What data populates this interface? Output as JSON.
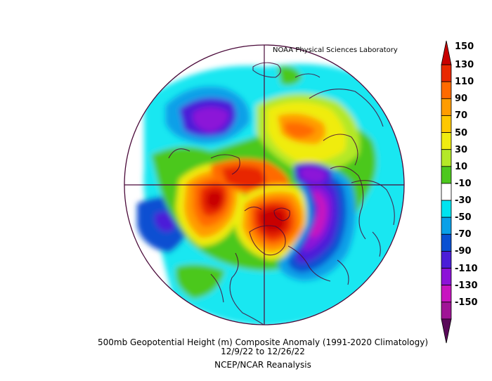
{
  "credit": "NOAA Physical Sciences Laboratory",
  "caption": {
    "title": "500mb Geopotential Height (m) Composite Anomaly (1991-2020 Climatology)",
    "dates": "12/9/22  to 12/26/22",
    "source": "NCEP/NCAR Reanalysis"
  },
  "colorbar": {
    "ticks": [
      "150",
      "130",
      "110",
      "90",
      "70",
      "50",
      "30",
      "10",
      "-10",
      "-30",
      "-50",
      "-70",
      "-90",
      "-110",
      "-130",
      "-150"
    ],
    "colors": [
      "#c80000",
      "#e82800",
      "#ff6a00",
      "#ff9c00",
      "#ffc800",
      "#f0ec10",
      "#b4e828",
      "#4cc81e",
      "#ffffff",
      "#00e4f0",
      "#0aa0e8",
      "#0a50d2",
      "#4b1ed8",
      "#8c12d8",
      "#c814c0",
      "#a01496",
      "#5a0a5a"
    ]
  },
  "map": {
    "projection": "north polar stereographic",
    "variable": "500mb geopotential height anomaly",
    "units": "m",
    "features": [
      {
        "name": "ridge-north-pacific",
        "sign": "positive",
        "peak": 150
      },
      {
        "name": "ridge-greenland-canada",
        "sign": "positive",
        "peak": 150
      },
      {
        "name": "ridge-arctic-north-atlantic",
        "sign": "positive",
        "peak": 110
      },
      {
        "name": "trough-eastern-siberia",
        "sign": "negative",
        "peak": -150
      },
      {
        "name": "trough-western-north-america",
        "sign": "negative",
        "peak": -150
      },
      {
        "name": "low-europe",
        "sign": "negative",
        "peak": -110
      },
      {
        "name": "low-subtropical-pacific",
        "sign": "negative",
        "peak": -90
      }
    ]
  }
}
